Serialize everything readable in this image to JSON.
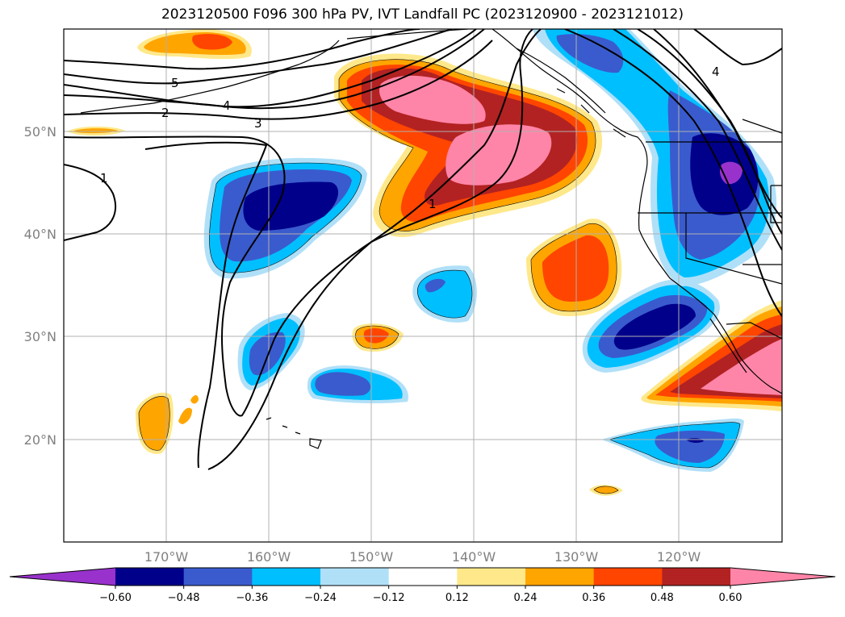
{
  "title": "2023120500 F096 300 hPa PV, IVT Landfall PC (2023120900 - 2023121012)",
  "map": {
    "latitude_labels": [
      "50°N",
      "40°N",
      "30°N",
      "20°N"
    ],
    "longitude_labels": [
      "170°W",
      "160°W",
      "150°W",
      "140°W",
      "130°W",
      "120°W"
    ],
    "pv_contour_labels": [
      "5",
      "4",
      "2",
      "3",
      "1",
      "1",
      "4"
    ],
    "colors": {
      "purple": "#9932cc",
      "navy": "#00008b",
      "blue": "#3a5bcd",
      "deepskyblue": "#00bfff",
      "lightblue": "#b0e0f8",
      "white": "#ffffff",
      "lightyellow": "#ffe88a",
      "orange": "#ffa500",
      "orangered": "#ff4500",
      "firebrick": "#b22222",
      "pink": "#ff85a8"
    }
  },
  "colorbar": {
    "tick_labels": [
      "−0.60",
      "−0.48",
      "−0.36",
      "−0.24",
      "−0.12",
      "0.12",
      "0.24",
      "0.36",
      "0.48",
      "0.60"
    ],
    "bins": [
      "#00008b",
      "#3a5bcd",
      "#00bfff",
      "#b0e0f8",
      "#ffffff",
      "#ffe88a",
      "#ffa500",
      "#ff4500",
      "#b22222"
    ],
    "extend_min_color": "#9932cc",
    "extend_max_color": "#ff85a8"
  }
}
